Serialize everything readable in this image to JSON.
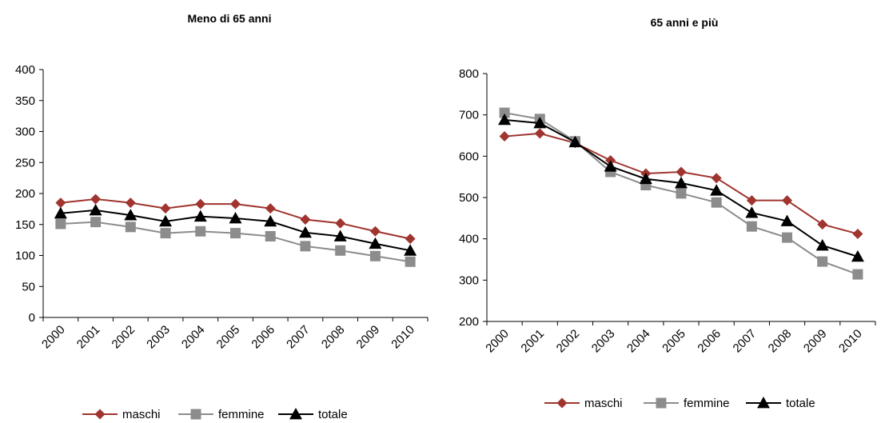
{
  "chart_data": [
    {
      "type": "line",
      "title": "Meno di 65 anni",
      "xlabel": "",
      "ylabel": "",
      "ylim": [
        0,
        400
      ],
      "yticks": [
        0,
        50,
        100,
        150,
        200,
        250,
        300,
        350,
        400
      ],
      "grid": false,
      "legend": "bottom",
      "categories": [
        "2000",
        "2001",
        "2002",
        "2003",
        "2004",
        "2005",
        "2006",
        "2007",
        "2008",
        "2009",
        "2010"
      ],
      "series": [
        {
          "name": "maschi",
          "color": "#A0352F",
          "marker": "diamond",
          "values": [
            185,
            191,
            185,
            176,
            183,
            183,
            176,
            158,
            152,
            139,
            127
          ]
        },
        {
          "name": "femmine",
          "color": "#8C8C8C",
          "marker": "square",
          "values": [
            151,
            154,
            146,
            136,
            139,
            136,
            131,
            115,
            108,
            99,
            90
          ]
        },
        {
          "name": "totale",
          "color": "#000000",
          "marker": "triangle",
          "values": [
            168,
            173,
            165,
            155,
            163,
            160,
            155,
            137,
            131,
            119,
            108
          ]
        }
      ]
    },
    {
      "type": "line",
      "title": "65 anni e più",
      "xlabel": "",
      "ylabel": "",
      "ylim": [
        200,
        800
      ],
      "yticks": [
        200,
        300,
        400,
        500,
        600,
        700,
        800
      ],
      "grid": false,
      "legend": "bottom",
      "categories": [
        "2000",
        "2001",
        "2002",
        "2003",
        "2004",
        "2005",
        "2006",
        "2007",
        "2008",
        "2009",
        "2010"
      ],
      "series": [
        {
          "name": "maschi",
          "color": "#A0352F",
          "marker": "diamond",
          "values": [
            648,
            655,
            632,
            590,
            558,
            562,
            547,
            493,
            493,
            435,
            412
          ]
        },
        {
          "name": "femmine",
          "color": "#8C8C8C",
          "marker": "square",
          "values": [
            705,
            690,
            636,
            562,
            530,
            510,
            488,
            430,
            403,
            345,
            314
          ]
        },
        {
          "name": "totale",
          "color": "#000000",
          "marker": "triangle",
          "values": [
            688,
            680,
            634,
            575,
            545,
            535,
            517,
            463,
            443,
            384,
            357
          ]
        }
      ]
    }
  ]
}
